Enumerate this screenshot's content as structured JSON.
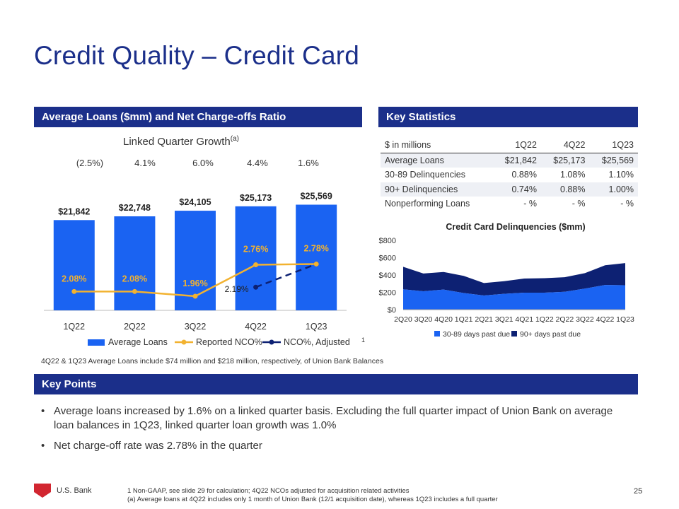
{
  "title": "Credit Quality – Credit Card",
  "loans_section": {
    "header": "Average Loans ($mm) and Net Charge-offs Ratio",
    "growth_title": "Linked Quarter Growth",
    "growth_sup": "(a)",
    "growth_values": [
      "(2.5%)",
      "4.1%",
      "6.0%",
      "4.4%",
      "1.6%"
    ],
    "note": "4Q22 & 1Q23 Average Loans include $74 million and $218  million, respectively, of Union Bank Balances",
    "footnote_marker": "1"
  },
  "stats_section": {
    "header": "Key Statistics",
    "columns": [
      "$ in millions",
      "1Q22",
      "4Q22",
      "1Q23"
    ],
    "rows": [
      [
        "Average Loans",
        "$21,842",
        "$25,173",
        "$25,569"
      ],
      [
        "30-89 Delinquencies",
        "0.88%",
        "1.08%",
        "1.10%"
      ],
      [
        "90+ Delinquencies",
        "0.74%",
        "0.88%",
        "1.00%"
      ],
      [
        "Nonperforming Loans",
        "- %",
        "- %",
        "- %"
      ]
    ]
  },
  "key_points": {
    "header": "Key Points",
    "items": [
      "Average loans increased by 1.6% on a linked quarter basis.  Excluding the full quarter impact of Union Bank on average loan balances in 1Q23, linked quarter loan growth was 1.0%",
      "Net charge-off rate was 2.78% in the quarter"
    ]
  },
  "footer": {
    "brand": "U.S. Bank",
    "footnote1": "1 Non-GAAP, see slide 29 for calculation; 4Q22 NCOs adjusted for acquisition related activities",
    "footnote2": "(a) Average loans at 4Q22 includes only 1 month of Union Bank (12/1 acquisition date), whereas 1Q23 includes a full  quarter",
    "page": "25"
  },
  "colors": {
    "navy": "#1b2f8a",
    "bar_blue": "#1a63f2",
    "orange": "#f2b230",
    "dark_navy": "#0d2173"
  },
  "chart_data": [
    {
      "type": "bar",
      "categories": [
        "1Q22",
        "2Q22",
        "3Q22",
        "4Q22",
        "1Q23"
      ],
      "series": [
        {
          "name": "Average Loans",
          "type": "bar",
          "values": [
            21842,
            22748,
            24105,
            25173,
            25569
          ],
          "labels": [
            "$21,842",
            "$22,748",
            "$24,105",
            "$25,173",
            "$25,569"
          ]
        },
        {
          "name": "Reported NCO%",
          "type": "line",
          "values": [
            2.08,
            2.08,
            1.96,
            2.76,
            2.78
          ],
          "labels": [
            "2.08%",
            "2.08%",
            "1.96%",
            "2.76%",
            "2.78%"
          ]
        },
        {
          "name": "NCO%, Adjusted",
          "type": "line-dashed",
          "values": [
            null,
            null,
            null,
            2.19,
            2.78
          ],
          "labels": [
            "",
            "",
            "",
            "2.19%",
            ""
          ]
        }
      ],
      "legend": [
        "Average Loans",
        "Reported NCO%",
        "NCO%, Adjusted"
      ],
      "legend_position": "bottom"
    },
    {
      "type": "area",
      "title": "Credit Card Delinquencies ($mm)",
      "categories": [
        "2Q20",
        "3Q20",
        "4Q20",
        "1Q21",
        "2Q21",
        "3Q21",
        "4Q21",
        "1Q22",
        "2Q22",
        "3Q22",
        "4Q22",
        "1Q23"
      ],
      "series": [
        {
          "name": "30-89 days past due",
          "values": [
            235,
            212,
            232,
            192,
            163,
            183,
            196,
            196,
            206,
            243,
            285,
            282
          ]
        },
        {
          "name": "90+ days past due",
          "values": [
            260,
            205,
            203,
            198,
            144,
            146,
            163,
            167,
            168,
            178,
            227,
            256
          ]
        }
      ],
      "ylim": [
        0,
        800
      ],
      "yticks": [
        "$0",
        "$200",
        "$400",
        "$600",
        "$800"
      ],
      "legend_position": "bottom"
    }
  ]
}
